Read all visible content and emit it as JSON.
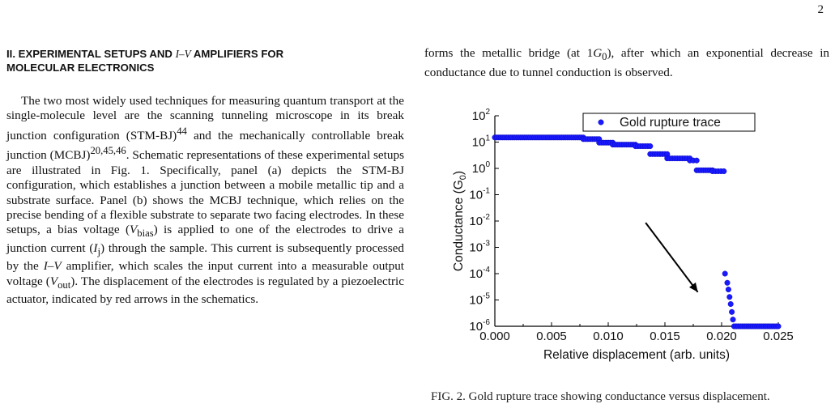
{
  "page": {
    "number": "2"
  },
  "section": {
    "heading_line1_prefix": "II.    EXPERIMENTAL SETUPS AND ",
    "heading_italic": "I–V",
    "heading_line1_suffix": " AMPLIFIERS FOR",
    "heading_line2": "MOLECULAR ELECTRONICS"
  },
  "left_paragraph": {
    "p1": "The two most widely used techniques for measuring quantum transport at the single-molecule level are the scanning tunneling microscope in its break junction configuration (STM-BJ)",
    "ref1": "44",
    "p2": " and the mechanically controllable break junction (MCBJ)",
    "ref2": "20,45,46",
    "p3": ". Schematic representations of these experimental setups are illustrated in Fig. 1. Specifically, panel (a) depicts the STM-BJ configuration, which establishes a junction between a mobile metallic tip and a substrate surface. Panel (b) shows the MCBJ technique, which relies on the precise bending of a flexible substrate to separate two facing electrodes. In these setups, a bias voltage (",
    "vbias_v": "V",
    "vbias_sub": "bias",
    "p4": ") is applied to one of the electrodes to drive a junction current (",
    "ij_i": "I",
    "ij_sub": "j",
    "p5": ") through the sample. This current is subsequently processed by the ",
    "iv": "I–V",
    "p6": " amplifier, which scales the input current into a measurable output voltage (",
    "vout_v": "V",
    "vout_sub": "out",
    "p7": "). The displacement of the electrodes is regulated by a piezoelectric actuator, indicated by red arrows in the schematics."
  },
  "right_intro": {
    "t1": "forms the metallic bridge (at 1",
    "g": "G",
    "g_sub": "0",
    "t2": "), after which an exponential decrease in conductance due to tunnel conduction is observed."
  },
  "caption_sliver": "FIG. 2. Gold rupture trace showing conductance versus displacement.",
  "chart_data": {
    "type": "scatter",
    "title": "",
    "xlabel": "Relative displacement (arb. units)",
    "ylabel_main": "Conductance (G",
    "ylabel_sub": "0",
    "ylabel_end": ")",
    "xlim": [
      0.0,
      0.025
    ],
    "ylim_log10": [
      -6,
      2
    ],
    "y_scale": "log",
    "x_ticks": [
      "0.000",
      "0.005",
      "0.010",
      "0.015",
      "0.020",
      "0.025"
    ],
    "y_tick_exponents": [
      "2",
      "1",
      "0",
      "-1",
      "-2",
      "-3",
      "-4",
      "-5",
      "-6"
    ],
    "legend": {
      "label": "Gold rupture trace",
      "position": "top-right"
    },
    "grid": false,
    "series": [
      {
        "name": "Gold rupture trace",
        "color": "#1a1aff",
        "segments": [
          {
            "x_start": 0.0,
            "x_end": 0.0078,
            "y": 15,
            "n": 46
          },
          {
            "x_start": 0.0078,
            "x_end": 0.0092,
            "y": 13,
            "n": 8
          },
          {
            "x_start": 0.0092,
            "x_end": 0.0104,
            "y": 9.5,
            "n": 7
          },
          {
            "x_start": 0.0104,
            "x_end": 0.0124,
            "y": 8,
            "n": 11
          },
          {
            "x_start": 0.0124,
            "x_end": 0.0137,
            "y": 7,
            "n": 7
          },
          {
            "x_start": 0.0137,
            "x_end": 0.0152,
            "y": 3.5,
            "n": 8
          },
          {
            "x_start": 0.0152,
            "x_end": 0.0172,
            "y": 2.4,
            "n": 10
          },
          {
            "x_start": 0.0172,
            "x_end": 0.0178,
            "y": 2.0,
            "n": 3
          },
          {
            "x_start": 0.0178,
            "x_end": 0.0192,
            "y": 0.85,
            "n": 8
          },
          {
            "x_start": 0.0192,
            "x_end": 0.0202,
            "y": 0.78,
            "n": 5
          }
        ],
        "points_drop": [
          [
            0.0203,
            0.0001
          ],
          [
            0.0205,
            4.5e-05
          ],
          [
            0.0206,
            2.5e-05
          ],
          [
            0.0207,
            1.3e-05
          ],
          [
            0.0208,
            7e-06
          ],
          [
            0.0209,
            3.5e-06
          ],
          [
            0.021,
            1.8e-06
          ]
        ],
        "tail": {
          "x_start": 0.0211,
          "x_end": 0.025,
          "y": 1e-06,
          "n": 22
        }
      }
    ],
    "annotation": {
      "type": "arrow",
      "from": [
        0.0133,
        0.0086
      ],
      "to": [
        0.0179,
        2e-05
      ]
    }
  }
}
